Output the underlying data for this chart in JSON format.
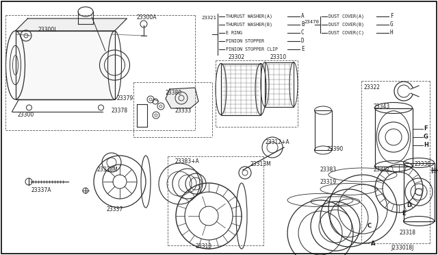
{
  "figsize": [
    6.4,
    3.72
  ],
  "dpi": 100,
  "bg": "#ffffff",
  "text_color": "#1a1a1a",
  "line_color": "#2a2a2a",
  "legend_left_partno": "23321",
  "legend_left_items": [
    [
      "THURUST WASHER(A)",
      "A"
    ],
    [
      "THURUST WASHER(B)",
      "B"
    ],
    [
      "E RING",
      "C"
    ],
    [
      "PINION STOPPER",
      "D"
    ],
    [
      "PINION STOPPER CLIP",
      "E"
    ]
  ],
  "legend_right_partno": "23470",
  "legend_right_items": [
    [
      "DUST COVER(A)",
      "F"
    ],
    [
      "DUST COVER(B)",
      "G"
    ],
    [
      "DUST COVER(C)",
      "H"
    ]
  ],
  "bottom_right_code": "J233018J"
}
